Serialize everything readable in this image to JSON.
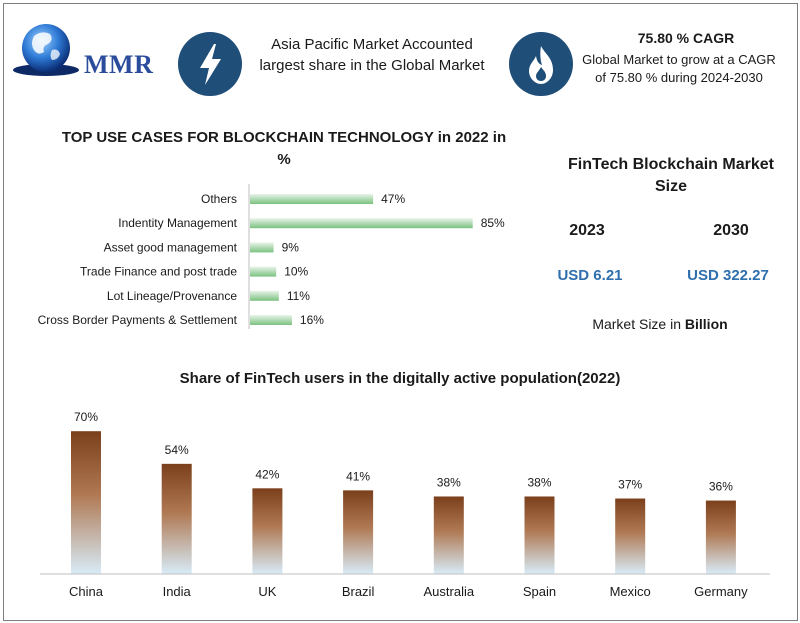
{
  "header": {
    "logo_text": "MMR",
    "bolt_icon": "lightning-bolt-icon",
    "flame_icon": "flame-icon",
    "highlight_text": "Asia Pacific Market Accounted largest share in the Global Market",
    "cagr_title": "75.80 % CAGR",
    "cagr_text": "Global Market to grow at a CAGR of 75.80 % during 2024-2030"
  },
  "market_size": {
    "title": "FinTech Blockchain Market Size",
    "year_1": "2023",
    "year_2": "2030",
    "value_1": "USD 6.21",
    "value_2": "USD 322.27",
    "note_prefix": "Market Size in",
    "note_unit": "Billion"
  },
  "colors": {
    "hbar_light": "#e9f4ea",
    "hbar_dark": "#7ac27f",
    "vbar_top": "#7b3f1b",
    "vbar_bottom": "#d8ecf8",
    "icon_circle": "#1f4e79",
    "value_blue": "#2f6fad"
  },
  "chart_data": [
    {
      "type": "bar",
      "orientation": "horizontal",
      "title": "TOP USE CASES FOR BLOCKCHAIN TECHNOLOGY in 2022 in %",
      "categories": [
        "Others",
        "Indentity Management",
        "Asset good management",
        "Trade Finance and post trade",
        "Lot Lineage/Provenance",
        "Cross Border Payments & Settlement"
      ],
      "values": [
        47,
        85,
        9,
        10,
        11,
        16
      ],
      "value_labels": [
        "47%",
        "85%",
        "9%",
        "10%",
        "11%",
        "16%"
      ],
      "xlim": [
        0,
        100
      ],
      "grid": false
    },
    {
      "type": "bar",
      "orientation": "vertical",
      "title": "Share of FinTech users in the digitally active population(2022)",
      "categories": [
        "China",
        "India",
        "UK",
        "Brazil",
        "Australia",
        "Spain",
        "Mexico",
        "Germany"
      ],
      "values": [
        70,
        54,
        42,
        41,
        38,
        38,
        37,
        36
      ],
      "value_labels": [
        "70%",
        "54%",
        "42%",
        "41%",
        "38%",
        "38%",
        "37%",
        "36%"
      ],
      "ylim": [
        0,
        100
      ],
      "grid": false
    }
  ]
}
